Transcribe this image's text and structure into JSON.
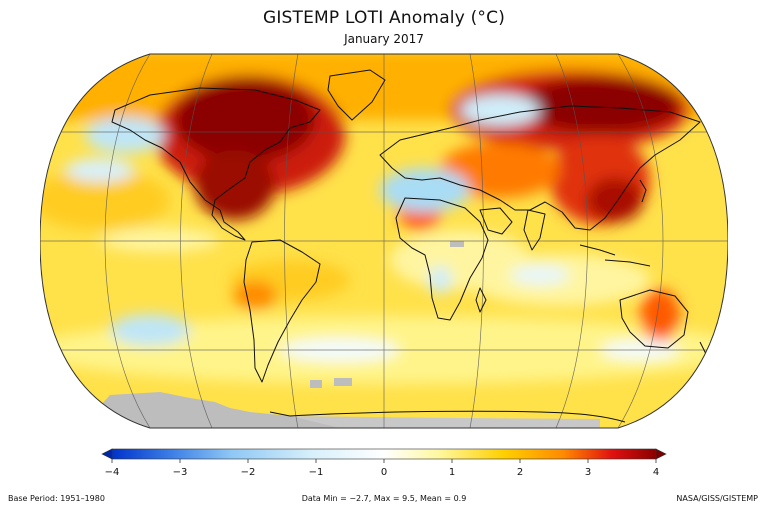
{
  "title": "GISTEMP LOTI Anomaly (°C)",
  "subtitle": "January 2017",
  "colorbar": {
    "ticks": [
      "−4",
      "−3",
      "−2",
      "−1",
      "0",
      "1",
      "2",
      "3",
      "4"
    ],
    "stops": [
      "#0033cc",
      "#3d7fe6",
      "#8fc8f5",
      "#d8f0fb",
      "#ffffff",
      "#fff8a0",
      "#ffd000",
      "#ff8a00",
      "#e01010",
      "#8b0000"
    ]
  },
  "footer": {
    "base_period": "Base Period: 1951–1980",
    "stats": "Data Min = −2.7, Max = 9.5, Mean = 0.9",
    "credit": "NASA/GISS/GISTEMP"
  },
  "colors": {
    "no_data": "#bdbdbd",
    "coastline": "#111111",
    "grid": "#555555"
  }
}
